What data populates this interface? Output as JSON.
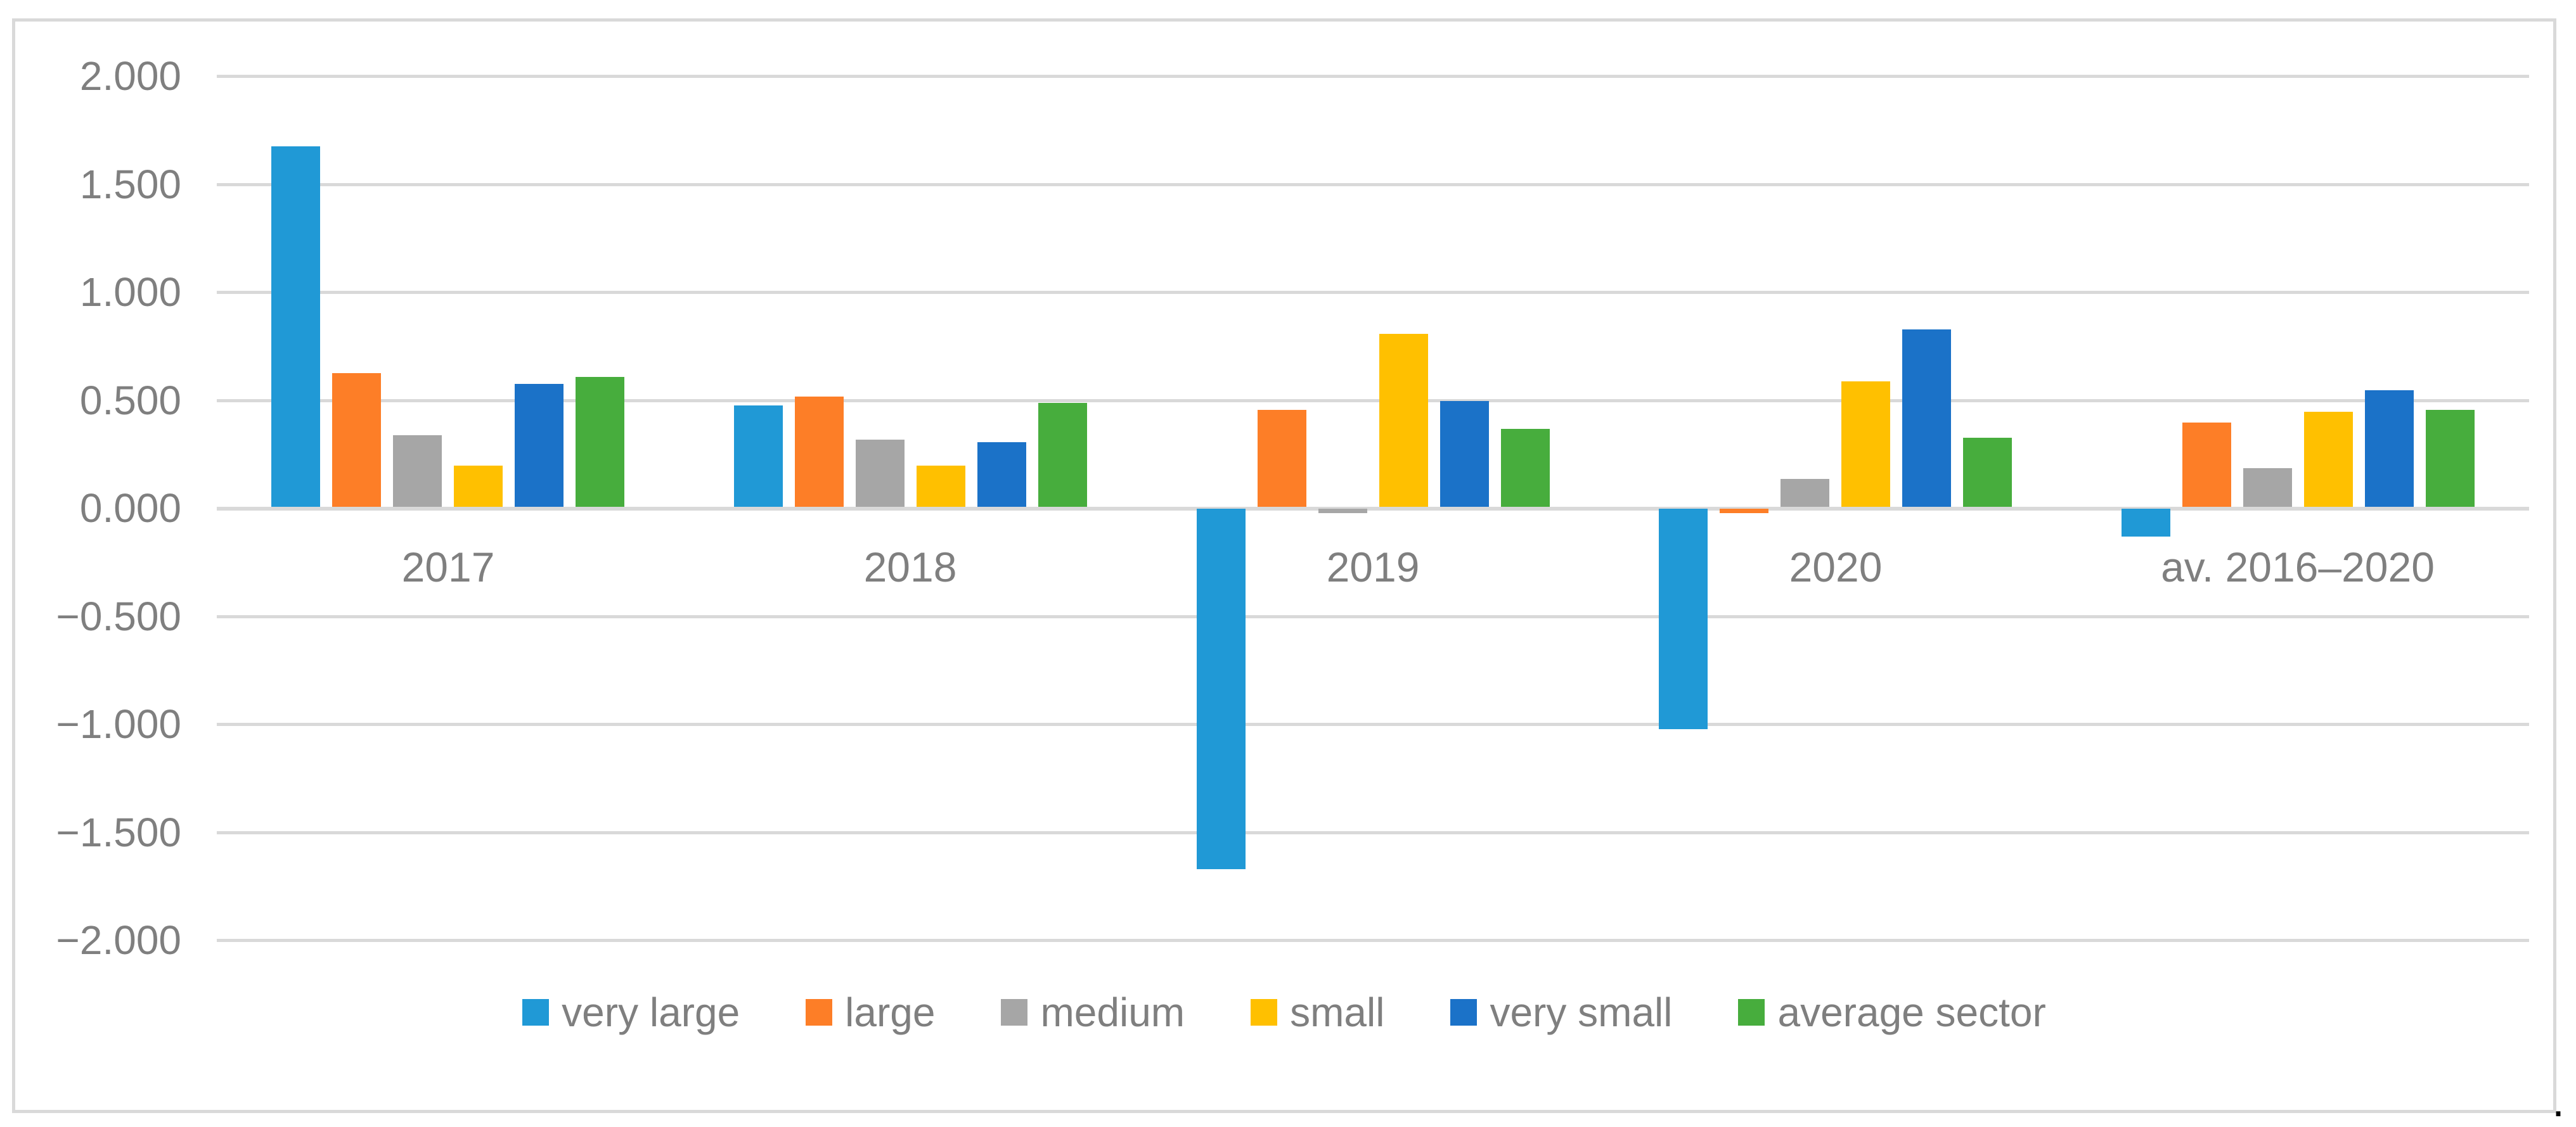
{
  "figure": {
    "background_color": "#ffffff",
    "border_color": "#d9d9d9",
    "gridline_color": "#d9d9d9",
    "text_color": "#7f7f7f",
    "caption_period": "."
  },
  "chart_data": {
    "type": "bar",
    "title": "",
    "categories": [
      "2017",
      "2018",
      "2019",
      "2020",
      "av. 2016–2020"
    ],
    "series": [
      {
        "name": "very large",
        "color": "#2099d6",
        "values": [
          1.67,
          0.47,
          -1.67,
          -1.02,
          -0.13
        ]
      },
      {
        "name": "large",
        "color": "#fd7e27",
        "values": [
          0.62,
          0.51,
          0.45,
          -0.02,
          0.39
        ]
      },
      {
        "name": "medium",
        "color": "#a6a6a6",
        "values": [
          0.33,
          0.31,
          -0.02,
          0.13,
          0.18
        ]
      },
      {
        "name": "small",
        "color": "#ffc000",
        "values": [
          0.19,
          0.19,
          0.8,
          0.58,
          0.44
        ]
      },
      {
        "name": "very small",
        "color": "#1b72c8",
        "values": [
          0.57,
          0.3,
          0.49,
          0.82,
          0.54
        ]
      },
      {
        "name": "average sector",
        "color": "#47ad3d",
        "values": [
          0.6,
          0.48,
          0.36,
          0.32,
          0.45
        ]
      }
    ],
    "y_ticks": [
      {
        "value": 2.0,
        "label": "2.000"
      },
      {
        "value": 1.5,
        "label": "1.500"
      },
      {
        "value": 1.0,
        "label": "1.000"
      },
      {
        "value": 0.5,
        "label": "0.500"
      },
      {
        "value": 0.0,
        "label": "0.000"
      },
      {
        "value": -0.5,
        "label": "−0.500"
      },
      {
        "value": -1.0,
        "label": "−1.000"
      },
      {
        "value": -1.5,
        "label": "−1.500"
      },
      {
        "value": -2.0,
        "label": "−2.000"
      }
    ],
    "ylim": [
      -2.0,
      2.0
    ],
    "xlabel": "",
    "ylabel": "",
    "grid": "horizontal",
    "legend_position": "bottom"
  }
}
